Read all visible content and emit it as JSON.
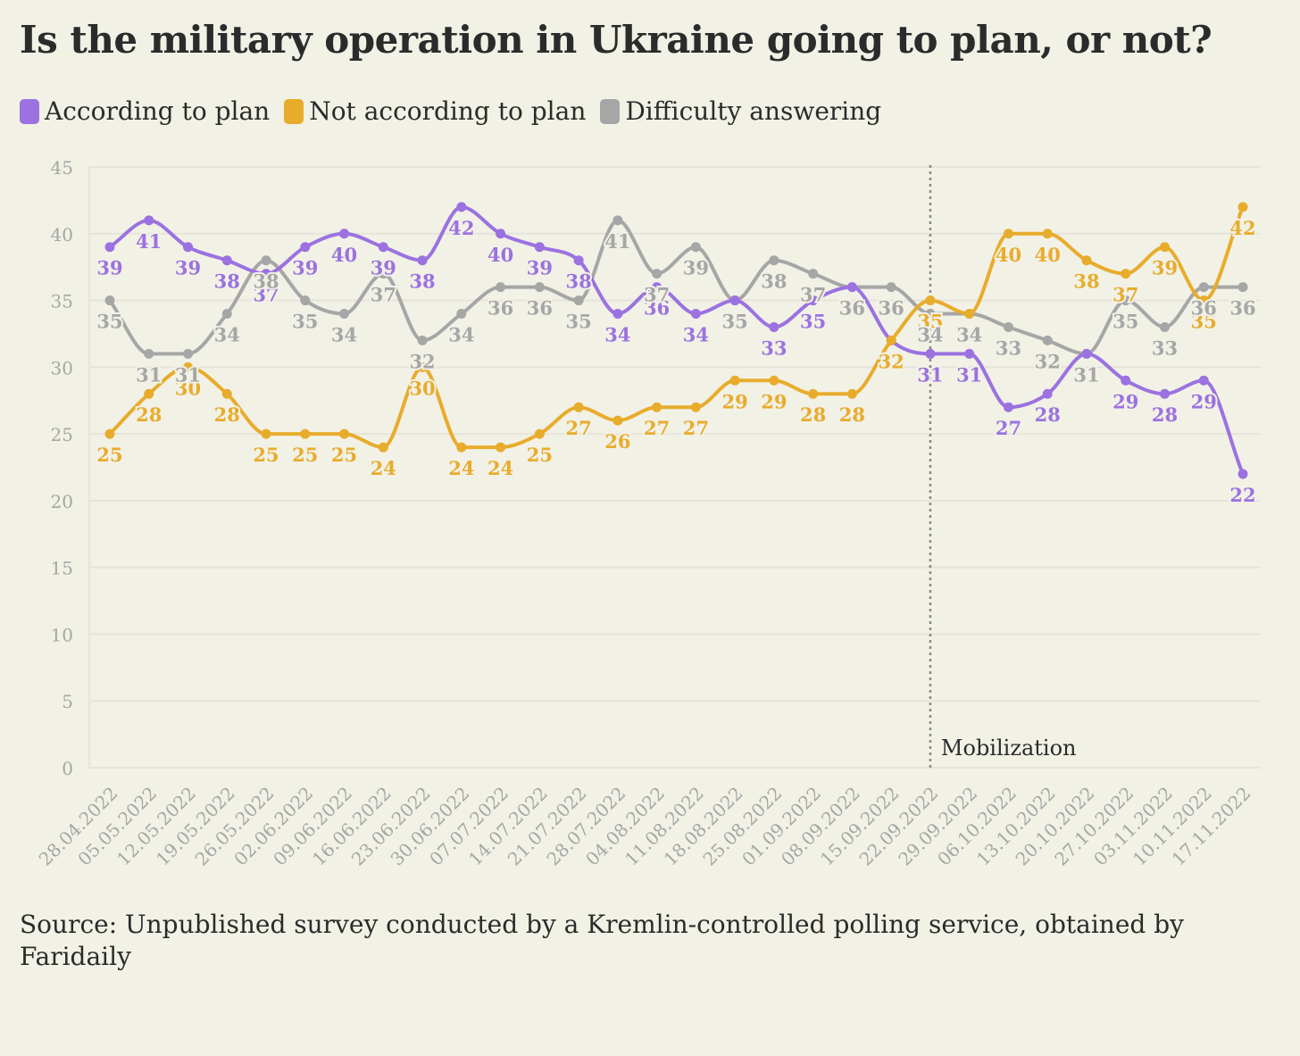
{
  "chart_data": {
    "type": "line",
    "title": "Is the military operation in Ukraine going to plan, or not?",
    "xlabel": "",
    "ylabel": "",
    "ylim": [
      0,
      45
    ],
    "yticks": [
      0,
      5,
      10,
      15,
      20,
      25,
      30,
      35,
      40,
      45
    ],
    "grid": true,
    "legend": "top-left",
    "categories": [
      "28.04.2022",
      "05.05.2022",
      "12.05.2022",
      "19.05.2022",
      "26.05.2022",
      "02.06.2022",
      "09.06.2022",
      "16.06.2022",
      "23.06.2022",
      "30.06.2022",
      "07.07.2022",
      "14.07.2022",
      "21.07.2022",
      "28.07.2022",
      "04.08.2022",
      "11.08.2022",
      "18.08.2022",
      "25.08.2022",
      "01.09.2022",
      "08.09.2022",
      "15.09.2022",
      "22.09.2022",
      "29.09.2022",
      "06.10.2022",
      "13.10.2022",
      "20.10.2022",
      "27.10.2022",
      "03.11.2022",
      "10.11.2022",
      "17.11.2022"
    ],
    "series": [
      {
        "name": "According to plan",
        "color": "#9b72e0",
        "values": [
          39,
          41,
          39,
          38,
          37,
          39,
          40,
          39,
          38,
          42,
          40,
          39,
          38,
          34,
          36,
          34,
          35,
          33,
          35,
          36,
          32,
          31,
          31,
          27,
          28,
          31,
          29,
          28,
          29,
          22
        ]
      },
      {
        "name": "Not according to plan",
        "color": "#e8ac2c",
        "values": [
          25,
          28,
          30,
          28,
          25,
          25,
          25,
          24,
          30,
          24,
          24,
          25,
          27,
          26,
          27,
          27,
          29,
          29,
          28,
          28,
          32,
          35,
          34,
          40,
          40,
          38,
          37,
          39,
          35,
          42
        ]
      },
      {
        "name": "Difficulty answering",
        "color": "#a6a6a6",
        "values": [
          35,
          31,
          31,
          34,
          38,
          35,
          34,
          37,
          32,
          34,
          36,
          36,
          35,
          41,
          37,
          39,
          35,
          38,
          37,
          36,
          36,
          34,
          34,
          33,
          32,
          31,
          35,
          33,
          36,
          36
        ]
      }
    ],
    "annotations": [
      {
        "x": "22.09.2022",
        "text": "Mobilization",
        "style": "dotted-vertical-line"
      }
    ],
    "source": "Source: Unpublished survey conducted by a Kremlin-controlled polling service, obtained by Faridaily"
  },
  "colors": {
    "background": "#f2f1e6",
    "grid": "#e6e4da",
    "axis_text": "#a6a6a6",
    "text": "#2b2b2b",
    "annotation_line": "#8a8a8a"
  }
}
